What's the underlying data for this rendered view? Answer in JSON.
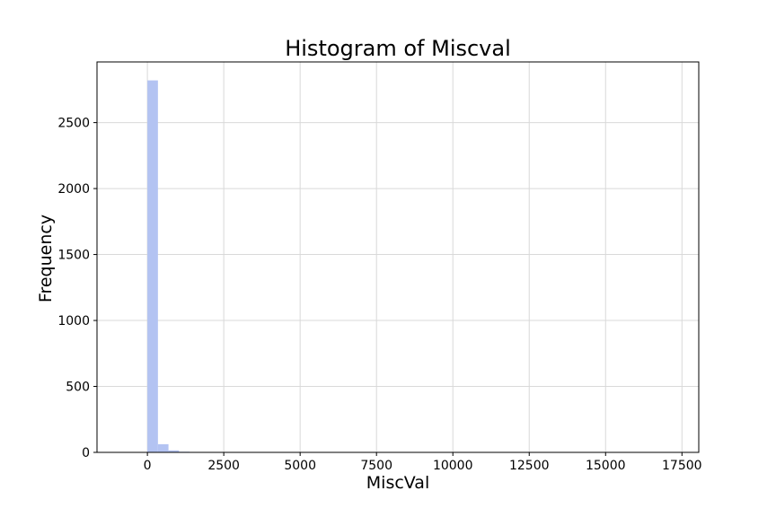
{
  "chart_data": {
    "type": "bar",
    "title": "Histogram of Miscval",
    "xlabel": "MiscVal",
    "ylabel": "Frequency",
    "bin_width": 345,
    "bins": [
      {
        "x0": 0,
        "x1": 345,
        "count": 2820
      },
      {
        "x0": 345,
        "x1": 690,
        "count": 62
      },
      {
        "x0": 690,
        "x1": 1035,
        "count": 15
      },
      {
        "x0": 1035,
        "x1": 1380,
        "count": 5
      },
      {
        "x0": 1380,
        "x1": 1725,
        "count": 3
      },
      {
        "x0": 1725,
        "x1": 2070,
        "count": 3
      },
      {
        "x0": 2070,
        "x1": 2415,
        "count": 1
      },
      {
        "x0": 2415,
        "x1": 2760,
        "count": 1
      },
      {
        "x0": 3105,
        "x1": 3450,
        "count": 1
      },
      {
        "x0": 3450,
        "x1": 3795,
        "count": 1
      },
      {
        "x0": 8280,
        "x1": 8625,
        "count": 1
      },
      {
        "x0": 12420,
        "x1": 12765,
        "count": 1
      },
      {
        "x0": 15180,
        "x1": 15525,
        "count": 1
      },
      {
        "x0": 17000,
        "x1": 17345,
        "count": 1
      }
    ],
    "xlim": [
      -1650,
      18050
    ],
    "ylim": [
      0,
      2960
    ],
    "xticks": [
      0,
      2500,
      5000,
      7500,
      10000,
      12500,
      15000,
      17500
    ],
    "yticks": [
      0,
      500,
      1000,
      1500,
      2000,
      2500
    ],
    "bar_color": "#b3c3f2",
    "grid": true
  }
}
